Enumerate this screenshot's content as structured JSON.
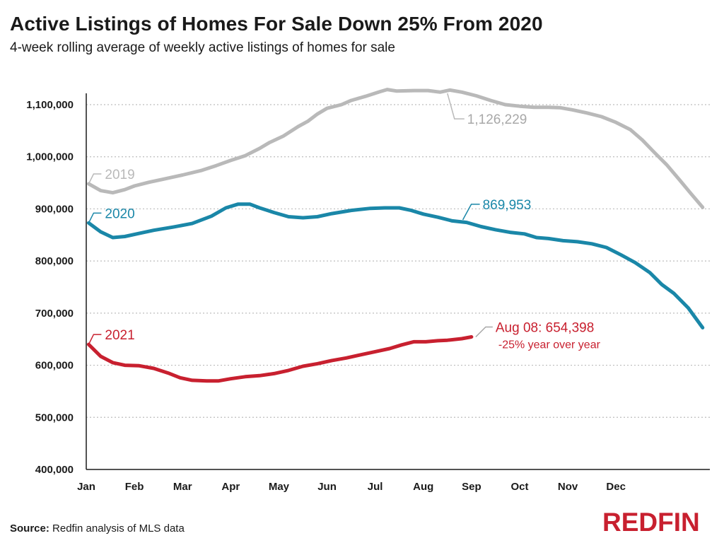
{
  "header": {
    "title": "Active Listings of Homes For Sale Down 25% From 2020",
    "subtitle": "4-week rolling average of weekly active listings of homes for sale"
  },
  "footer": {
    "source_label": "Source:",
    "source_text": "Redfin analysis of MLS data",
    "logo_text": "REDFIN"
  },
  "colors": {
    "2019": "#b9b9b9",
    "2020": "#1a87a8",
    "2021": "#c8202f",
    "grid": "#bdbdbd",
    "axis": "#1a1a1a"
  },
  "chart_data": {
    "type": "line",
    "title": "Active Listings of Homes For Sale Down 25% From 2020",
    "subtitle": "4-week rolling average of weekly active listings of homes for sale",
    "x_unit": "month (0 = start of Jan, 12 = end of Dec)",
    "x_tick_labels": [
      "Jan",
      "Feb",
      "Mar",
      "Apr",
      "May",
      "Jun",
      "Jul",
      "Aug",
      "Sep",
      "Oct",
      "Nov",
      "Dec"
    ],
    "ylim": [
      400000,
      1100000
    ],
    "y_tick_values": [
      400000,
      500000,
      600000,
      700000,
      800000,
      900000,
      1000000,
      1100000
    ],
    "y_tick_labels": [
      "400,000",
      "500,000",
      "600,000",
      "700,000",
      "800,000",
      "900,000",
      "1,000,000",
      "1,100,000"
    ],
    "grid": "horizontal dotted",
    "series": [
      {
        "name": "2019",
        "points": [
          [
            0.05,
            948000
          ],
          [
            0.3,
            935000
          ],
          [
            0.55,
            931000
          ],
          [
            0.8,
            937000
          ],
          [
            1.0,
            944000
          ],
          [
            1.3,
            951000
          ],
          [
            1.6,
            957000
          ],
          [
            2.0,
            965000
          ],
          [
            2.4,
            974000
          ],
          [
            2.7,
            983000
          ],
          [
            3.0,
            993000
          ],
          [
            3.3,
            1002000
          ],
          [
            3.6,
            1016000
          ],
          [
            3.8,
            1027000
          ],
          [
            4.1,
            1040000
          ],
          [
            4.4,
            1058000
          ],
          [
            4.6,
            1068000
          ],
          [
            4.8,
            1082000
          ],
          [
            5.0,
            1093000
          ],
          [
            5.3,
            1100000
          ],
          [
            5.5,
            1108000
          ],
          [
            5.8,
            1116000
          ],
          [
            6.1,
            1125000
          ],
          [
            6.25,
            1129000
          ],
          [
            6.45,
            1126000
          ],
          [
            6.8,
            1127000
          ],
          [
            7.1,
            1127000
          ],
          [
            7.35,
            1124000
          ],
          [
            7.55,
            1128000
          ],
          [
            7.8,
            1124000
          ],
          [
            8.1,
            1117000
          ],
          [
            8.4,
            1108000
          ],
          [
            8.7,
            1100000
          ],
          [
            9.0,
            1097000
          ],
          [
            9.3,
            1095000
          ],
          [
            9.6,
            1095000
          ],
          [
            9.85,
            1094000
          ],
          [
            10.1,
            1090000
          ],
          [
            10.4,
            1084000
          ],
          [
            10.7,
            1077000
          ],
          [
            11.0,
            1066000
          ],
          [
            11.3,
            1052000
          ],
          [
            11.55,
            1032000
          ],
          [
            11.8,
            1008000
          ],
          [
            12.05,
            985000
          ],
          [
            12.3,
            958000
          ],
          [
            12.55,
            930000
          ],
          [
            12.8,
            903000
          ]
        ],
        "end_value_label": "1,126,229"
      },
      {
        "name": "2020",
        "points": [
          [
            0.05,
            873000
          ],
          [
            0.3,
            856000
          ],
          [
            0.55,
            845000
          ],
          [
            0.8,
            847000
          ],
          [
            1.1,
            853000
          ],
          [
            1.4,
            859000
          ],
          [
            1.8,
            865000
          ],
          [
            2.2,
            872000
          ],
          [
            2.6,
            886000
          ],
          [
            2.9,
            902000
          ],
          [
            3.15,
            909000
          ],
          [
            3.4,
            909000
          ],
          [
            3.6,
            902000
          ],
          [
            3.9,
            893000
          ],
          [
            4.2,
            885000
          ],
          [
            4.5,
            883000
          ],
          [
            4.8,
            885000
          ],
          [
            5.1,
            891000
          ],
          [
            5.5,
            897000
          ],
          [
            5.9,
            901000
          ],
          [
            6.2,
            902000
          ],
          [
            6.5,
            902000
          ],
          [
            6.75,
            897000
          ],
          [
            7.0,
            890000
          ],
          [
            7.3,
            884000
          ],
          [
            7.6,
            877000
          ],
          [
            7.9,
            874000
          ],
          [
            8.2,
            866000
          ],
          [
            8.5,
            860000
          ],
          [
            8.8,
            855000
          ],
          [
            9.1,
            852000
          ],
          [
            9.35,
            845000
          ],
          [
            9.6,
            843000
          ],
          [
            9.9,
            839000
          ],
          [
            10.2,
            837000
          ],
          [
            10.5,
            833000
          ],
          [
            10.8,
            826000
          ],
          [
            11.1,
            812000
          ],
          [
            11.4,
            797000
          ],
          [
            11.7,
            778000
          ],
          [
            11.95,
            755000
          ],
          [
            12.2,
            738000
          ],
          [
            12.5,
            710000
          ],
          [
            12.8,
            672000
          ]
        ],
        "end_value_label": "869,953"
      },
      {
        "name": "2021",
        "points": [
          [
            0.05,
            640000
          ],
          [
            0.3,
            617000
          ],
          [
            0.55,
            605000
          ],
          [
            0.8,
            600000
          ],
          [
            1.1,
            599000
          ],
          [
            1.4,
            594000
          ],
          [
            1.7,
            585000
          ],
          [
            1.95,
            576000
          ],
          [
            2.2,
            571000
          ],
          [
            2.5,
            570000
          ],
          [
            2.75,
            570000
          ],
          [
            3.0,
            574000
          ],
          [
            3.3,
            578000
          ],
          [
            3.6,
            580000
          ],
          [
            3.9,
            584000
          ],
          [
            4.2,
            590000
          ],
          [
            4.5,
            598000
          ],
          [
            4.8,
            603000
          ],
          [
            5.1,
            609000
          ],
          [
            5.4,
            614000
          ],
          [
            5.7,
            620000
          ],
          [
            6.0,
            626000
          ],
          [
            6.3,
            632000
          ],
          [
            6.55,
            639000
          ],
          [
            6.8,
            645000
          ],
          [
            7.05,
            645000
          ],
          [
            7.3,
            647000
          ],
          [
            7.5,
            648000
          ],
          [
            7.8,
            651000
          ],
          [
            8.0,
            654398
          ]
        ],
        "end_value_label": "Aug 08: 654,398",
        "annotation": "-25% year over year"
      }
    ]
  }
}
